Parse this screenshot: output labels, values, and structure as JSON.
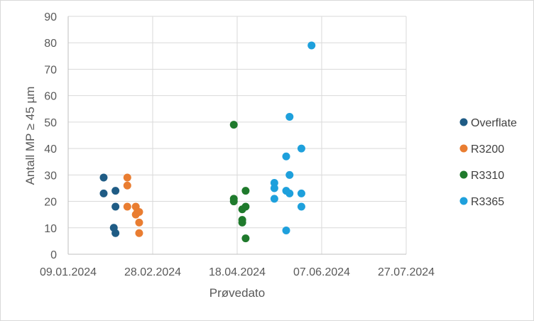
{
  "chart_data": {
    "type": "scatter",
    "xlabel": "Prøvedato",
    "ylabel": "Antall MP ≥ 45 µm",
    "xlim": [
      "2024-01-09",
      "2024-07-27"
    ],
    "ylim": [
      0,
      90
    ],
    "x_ticks": [
      "09.01.2024",
      "28.02.2024",
      "18.04.2024",
      "07.06.2024",
      "27.07.2024"
    ],
    "y_ticks": [
      "0",
      "10",
      "20",
      "30",
      "40",
      "50",
      "60",
      "70",
      "80",
      "90"
    ],
    "grid": true,
    "legend_position": "right",
    "series": [
      {
        "name": "Overflate",
        "color": "#1f5c85",
        "points": [
          {
            "x": "2024-01-30",
            "y": 29
          },
          {
            "x": "2024-01-30",
            "y": 23
          },
          {
            "x": "2024-02-05",
            "y": 10
          },
          {
            "x": "2024-02-06",
            "y": 24
          },
          {
            "x": "2024-02-06",
            "y": 18
          },
          {
            "x": "2024-02-06",
            "y": 8
          }
        ]
      },
      {
        "name": "R3200",
        "color": "#e97d31",
        "points": [
          {
            "x": "2024-02-13",
            "y": 29
          },
          {
            "x": "2024-02-13",
            "y": 26
          },
          {
            "x": "2024-02-13",
            "y": 18
          },
          {
            "x": "2024-02-18",
            "y": 18
          },
          {
            "x": "2024-02-18",
            "y": 15
          },
          {
            "x": "2024-02-19",
            "y": 16
          },
          {
            "x": "2024-02-20",
            "y": 16
          },
          {
            "x": "2024-02-20",
            "y": 12
          },
          {
            "x": "2024-02-20",
            "y": 8
          }
        ]
      },
      {
        "name": "R3310",
        "color": "#1f7a2c",
        "points": [
          {
            "x": "2024-04-16",
            "y": 49
          },
          {
            "x": "2024-04-16",
            "y": 21
          },
          {
            "x": "2024-04-16",
            "y": 20
          },
          {
            "x": "2024-04-21",
            "y": 17
          },
          {
            "x": "2024-04-21",
            "y": 13
          },
          {
            "x": "2024-04-21",
            "y": 12
          },
          {
            "x": "2024-04-23",
            "y": 24
          },
          {
            "x": "2024-04-23",
            "y": 18
          },
          {
            "x": "2024-04-23",
            "y": 6
          }
        ]
      },
      {
        "name": "R3365",
        "color": "#1ea0dc",
        "points": [
          {
            "x": "2024-05-10",
            "y": 27
          },
          {
            "x": "2024-05-10",
            "y": 25
          },
          {
            "x": "2024-05-10",
            "y": 21
          },
          {
            "x": "2024-05-17",
            "y": 37
          },
          {
            "x": "2024-05-17",
            "y": 24
          },
          {
            "x": "2024-05-17",
            "y": 9
          },
          {
            "x": "2024-05-19",
            "y": 52
          },
          {
            "x": "2024-05-19",
            "y": 30
          },
          {
            "x": "2024-05-19",
            "y": 23
          },
          {
            "x": "2024-05-26",
            "y": 40
          },
          {
            "x": "2024-05-26",
            "y": 23
          },
          {
            "x": "2024-05-26",
            "y": 18
          },
          {
            "x": "2024-06-01",
            "y": 79
          }
        ]
      }
    ]
  }
}
